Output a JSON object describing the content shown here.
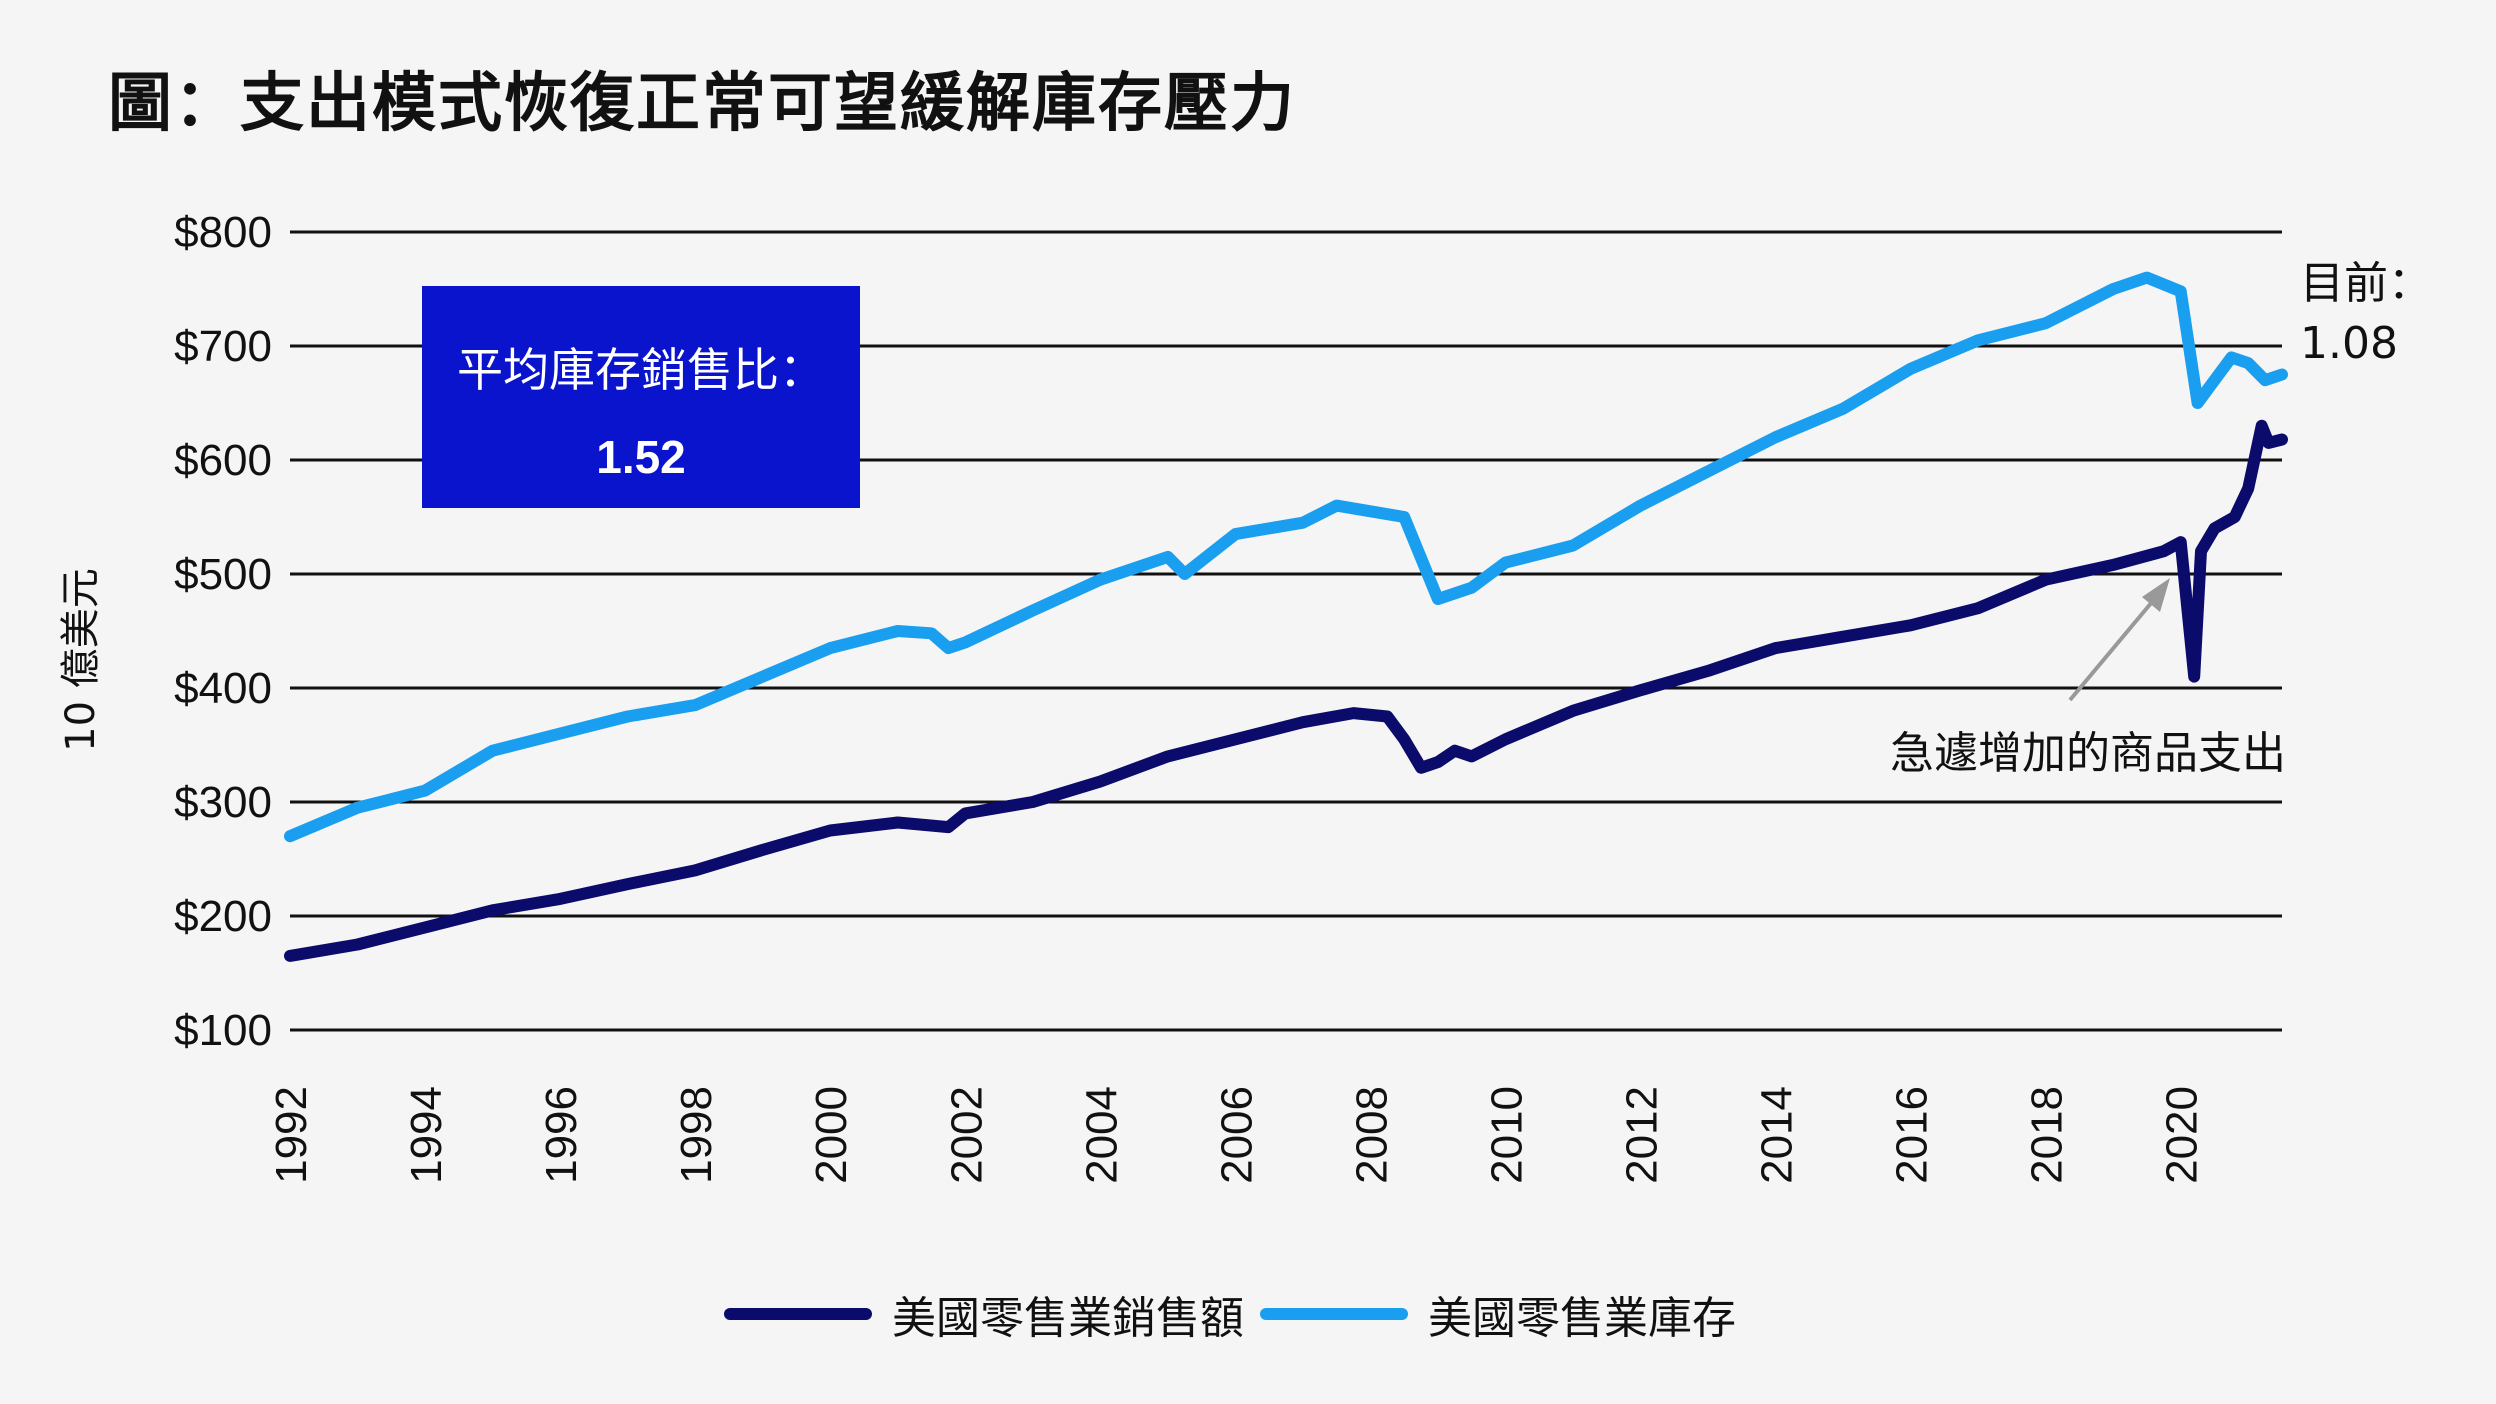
{
  "title": "圖：支出模式恢復正常可望緩解庫存壓力",
  "box": {
    "label": "平均庫存銷售比：",
    "value": "1.52",
    "color": "#0a14cc"
  },
  "current": {
    "label": "目前：",
    "value": "1.08"
  },
  "annotation": "急遽增加的商品支出",
  "colors": {
    "sales": "#0b0b6b",
    "inventory": "#1a9ff0",
    "grid": "#111111",
    "arrow": "#999999"
  },
  "chart_data": {
    "type": "line",
    "title": "圖：支出模式恢復正常可望緩解庫存壓力",
    "ylabel": "10 億美元",
    "xlabel": "",
    "ylim": [
      100,
      800
    ],
    "xlim": [
      1992,
      2021.5
    ],
    "yticks": [
      100,
      200,
      300,
      400,
      500,
      600,
      700,
      800
    ],
    "ytick_labels": [
      "$100",
      "$200",
      "$300",
      "$400",
      "$500",
      "$600",
      "$700",
      "$800"
    ],
    "xticks": [
      "1992",
      "1994",
      "1996",
      "1998",
      "2000",
      "2002",
      "2004",
      "2006",
      "2008",
      "2010",
      "2012",
      "2014",
      "2016",
      "2018",
      "2020"
    ],
    "grid": "horizontal",
    "legend": "bottom",
    "series": [
      {
        "name": "美國零售業銷售額",
        "x": [
          1992,
          1993,
          1994,
          1995,
          1996,
          1997,
          1998,
          1999,
          2000,
          2001,
          2001.75,
          2002,
          2003,
          2004,
          2005,
          2006,
          2007,
          2007.75,
          2008.25,
          2008.5,
          2008.75,
          2009,
          2009.25,
          2009.5,
          2010,
          2011,
          2012,
          2013,
          2014,
          2015,
          2016,
          2017,
          2018,
          2019,
          2019.75,
          2020,
          2020.2,
          2020.3,
          2020.5,
          2020.8,
          2021,
          2021.2,
          2021.3,
          2021.5
        ],
        "values": [
          165,
          175,
          190,
          205,
          215,
          228,
          240,
          258,
          275,
          282,
          278,
          290,
          300,
          318,
          340,
          355,
          370,
          378,
          375,
          355,
          330,
          335,
          345,
          340,
          355,
          380,
          398,
          415,
          435,
          445,
          455,
          470,
          495,
          508,
          520,
          528,
          410,
          520,
          540,
          550,
          575,
          630,
          615,
          618
        ]
      },
      {
        "name": "美國零售業庫存",
        "x": [
          1992,
          1993,
          1994,
          1995,
          1996,
          1997,
          1998,
          1999,
          2000,
          2001,
          2001.5,
          2001.75,
          2002,
          2003,
          2004,
          2005,
          2005.25,
          2006,
          2007,
          2007.5,
          2008,
          2008.5,
          2009,
          2009.5,
          2010,
          2011,
          2012,
          2013,
          2014,
          2015,
          2016,
          2017,
          2018,
          2019,
          2019.5,
          2020,
          2020.25,
          2020.5,
          2020.75,
          2021,
          2021.25,
          2021.5
        ],
        "values": [
          270,
          295,
          310,
          345,
          360,
          375,
          385,
          410,
          435,
          450,
          448,
          435,
          440,
          468,
          495,
          515,
          500,
          535,
          545,
          560,
          555,
          550,
          478,
          488,
          510,
          525,
          560,
          590,
          620,
          645,
          680,
          705,
          720,
          750,
          760,
          748,
          650,
          670,
          690,
          685,
          670,
          675
        ]
      }
    ]
  }
}
